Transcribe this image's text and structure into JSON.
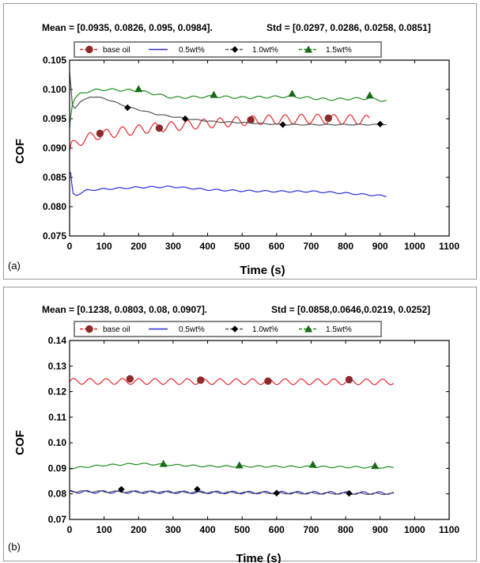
{
  "series_style": [
    {
      "color": "#e8262a",
      "marker": "circle",
      "marker_fill": "#8b2b2b"
    },
    {
      "color": "#2b2bd8",
      "marker": "none"
    },
    {
      "color": "#000000",
      "marker": "diamond",
      "line_color": "#555555"
    },
    {
      "color": "#1e8c1e",
      "marker": "triangle",
      "marker_fill": "#176b17"
    }
  ],
  "chart_data": [
    {
      "type": "line",
      "panel_label": "(a)",
      "stats_mean": "Mean = [0.0935, 0.0826, 0.095, 0.0984].",
      "stats_std": "Std = [0.0297, 0.0286, 0.0258, 0.0851]",
      "xlabel": "Time (s)",
      "ylabel": "COF",
      "xlim": [
        0,
        1100
      ],
      "ylim": [
        0.075,
        0.105
      ],
      "xticks": [
        0,
        100,
        200,
        300,
        400,
        500,
        600,
        700,
        800,
        900,
        1000,
        1100
      ],
      "yticks": [
        "0.075",
        "0.080",
        "0.085",
        "0.090",
        "0.095",
        "0.100",
        "0.105"
      ],
      "legend": [
        "base oil",
        "0.5wt%",
        "1.0wt%",
        "1.5wt%"
      ],
      "series": [
        {
          "name": "base oil",
          "x": [
            0,
            5,
            15,
            40,
            80,
            150,
            250,
            400,
            550,
            700,
            870
          ],
          "y": [
            0.0895,
            0.0905,
            0.0905,
            0.0915,
            0.0922,
            0.0928,
            0.0935,
            0.0942,
            0.0948,
            0.095,
            0.0948
          ],
          "ripple": 0.0008,
          "markers_x": [
            88,
            260,
            525,
            750
          ],
          "markers_y": [
            0.0925,
            0.0934,
            0.0948,
            0.0951
          ]
        },
        {
          "name": "0.5wt%",
          "x": [
            0,
            3,
            6,
            10,
            20,
            50,
            100,
            200,
            300,
            400,
            500,
            600,
            700,
            800,
            920
          ],
          "y": [
            0.0855,
            0.0858,
            0.084,
            0.0822,
            0.082,
            0.0828,
            0.083,
            0.0833,
            0.0834,
            0.0829,
            0.0827,
            0.0826,
            0.0826,
            0.0823,
            0.0818
          ],
          "ripple": 0.00012
        },
        {
          "name": "1.0wt%",
          "x": [
            0,
            3,
            8,
            15,
            30,
            60,
            100,
            170,
            250,
            340,
            420,
            520,
            620,
            750,
            900,
            920
          ],
          "y": [
            0.103,
            0.101,
            0.0975,
            0.0968,
            0.0978,
            0.0988,
            0.0985,
            0.097,
            0.0958,
            0.095,
            0.0945,
            0.0943,
            0.094,
            0.094,
            0.094,
            0.0941
          ],
          "ripple": 8e-05,
          "markers_x": [
            168,
            335,
            618,
            900
          ],
          "markers_y": [
            0.0969,
            0.095,
            0.094,
            0.0941
          ]
        },
        {
          "name": "1.5wt%",
          "x": [
            0,
            3,
            8,
            15,
            30,
            60,
            100,
            200,
            300,
            420,
            500,
            640,
            750,
            870,
            920
          ],
          "y": [
            0.0935,
            0.0955,
            0.0975,
            0.0985,
            0.0992,
            0.0998,
            0.1,
            0.0998,
            0.0986,
            0.0988,
            0.0986,
            0.0988,
            0.0983,
            0.0985,
            0.098
          ],
          "ripple": 0.00018,
          "markers_x": [
            200,
            418,
            645,
            870
          ],
          "markers_y": [
            0.1001,
            0.0991,
            0.0993,
            0.099
          ]
        }
      ]
    },
    {
      "type": "line",
      "panel_label": "(b)",
      "stats_mean": "Mean = [0.1238, 0.0803, 0.08, 0.0907].",
      "stats_std": "Std = [0.0858,0.0646,0.0219, 0.0252]",
      "xlabel": "Time (s)",
      "ylabel": "COF",
      "xlim": [
        0,
        1100
      ],
      "ylim": [
        0.07,
        0.14
      ],
      "xticks": [
        0,
        100,
        200,
        300,
        400,
        500,
        600,
        700,
        800,
        900,
        1000,
        1100
      ],
      "yticks": [
        "0.07",
        "0.08",
        "0.09",
        "0.10",
        "0.11",
        "0.12",
        "0.13",
        "0.14"
      ],
      "legend": [
        "base oil",
        "0.5wt%",
        "1.0wt%",
        "1.5wt%"
      ],
      "series": [
        {
          "name": "base oil",
          "x": [
            0,
            940
          ],
          "y": [
            0.124,
            0.1238
          ],
          "ripple": 0.0011,
          "markers_x": [
            175,
            380,
            575,
            810
          ],
          "markers_y": [
            0.125,
            0.1245,
            0.1241,
            0.1247
          ]
        },
        {
          "name": "0.5wt%",
          "x": [
            0,
            940
          ],
          "y": [
            0.0808,
            0.0803
          ],
          "ripple": 0.0005
        },
        {
          "name": "1.0wt%",
          "x": [
            0,
            940
          ],
          "y": [
            0.081,
            0.08
          ],
          "ripple": 0.0003,
          "markers_x": [
            150,
            370,
            600,
            810
          ],
          "markers_y": [
            0.0818,
            0.0818,
            0.0803,
            0.0802
          ]
        },
        {
          "name": "1.5wt%",
          "x": [
            0,
            100,
            200,
            400,
            600,
            800,
            940
          ],
          "y": [
            0.09,
            0.0912,
            0.0918,
            0.0908,
            0.0907,
            0.0905,
            0.0903
          ],
          "ripple": 0.0003,
          "markers_x": [
            272,
            492,
            705,
            885
          ],
          "markers_y": [
            0.0918,
            0.0912,
            0.0915,
            0.091
          ]
        }
      ]
    }
  ]
}
